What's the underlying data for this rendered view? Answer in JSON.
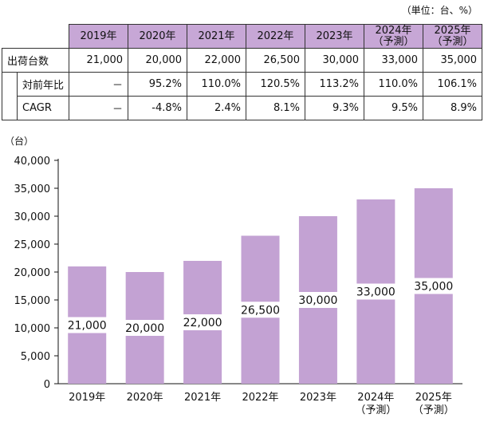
{
  "unit_note": "（単位：台、%）",
  "table": {
    "years": [
      {
        "year": "2019年",
        "note": ""
      },
      {
        "year": "2020年",
        "note": ""
      },
      {
        "year": "2021年",
        "note": ""
      },
      {
        "year": "2022年",
        "note": ""
      },
      {
        "year": "2023年",
        "note": ""
      },
      {
        "year": "2024年",
        "note": "（予測）"
      },
      {
        "year": "2025年",
        "note": "（予測）"
      }
    ],
    "rows": [
      {
        "label": "出荷台数",
        "values": [
          "21,000",
          "20,000",
          "22,000",
          "26,500",
          "30,000",
          "33,000",
          "35,000"
        ]
      },
      {
        "label": "対前年比",
        "values": [
          "－",
          "95.2%",
          "110.0%",
          "120.5%",
          "113.2%",
          "110.0%",
          "106.1%"
        ]
      },
      {
        "label": "CAGR",
        "values": [
          "－",
          "-4.8%",
          "2.4%",
          "8.1%",
          "9.3%",
          "9.5%",
          "8.9%"
        ]
      }
    ]
  },
  "chart_data": {
    "type": "bar",
    "y_unit_label": "（台）",
    "categories": [
      "2019年",
      "2020年",
      "2021年",
      "2022年",
      "2023年",
      "2024年",
      "2025年"
    ],
    "category_notes": [
      "",
      "",
      "",
      "",
      "",
      "（予測）",
      "（予測）"
    ],
    "values": [
      21000,
      20000,
      22000,
      26500,
      30000,
      33000,
      35000
    ],
    "value_labels": [
      "21,000",
      "20,000",
      "22,000",
      "26,500",
      "30,000",
      "33,000",
      "35,000"
    ],
    "ylim": [
      0,
      40000
    ],
    "yticks": [
      0,
      5000,
      10000,
      15000,
      20000,
      25000,
      30000,
      35000,
      40000
    ],
    "ytick_labels": [
      "0",
      "5,000",
      "10,000",
      "15,000",
      "20,000",
      "25,000",
      "30,000",
      "35,000",
      "40,000"
    ],
    "grid": false,
    "bar_color": "#c3a2d3"
  }
}
